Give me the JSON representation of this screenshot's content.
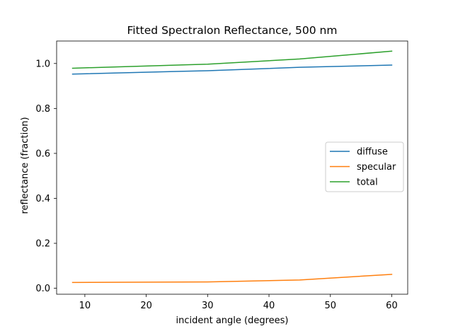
{
  "chart_data": {
    "type": "line",
    "title": "Fitted Spectralon Reflectance, 500 nm",
    "xlabel": "incident angle (degrees)",
    "ylabel": "reflectance (fraction)",
    "xlim": [
      5.4,
      62.6
    ],
    "ylim": [
      -0.0265,
      1.1
    ],
    "xticks": [
      10,
      20,
      30,
      40,
      50,
      60
    ],
    "yticks": [
      0.0,
      0.2,
      0.4,
      0.6,
      0.8,
      1.0
    ],
    "xtick_labels": [
      "10",
      "20",
      "30",
      "40",
      "50",
      "60"
    ],
    "ytick_labels": [
      "0.0",
      "0.2",
      "0.4",
      "0.6",
      "0.8",
      "1.0"
    ],
    "grid": false,
    "legend_position": "center-right",
    "series": [
      {
        "name": "diffuse",
        "color": "#1f77b4",
        "x": [
          8,
          30,
          45,
          60
        ],
        "y": [
          0.953,
          0.968,
          0.983,
          0.993
        ]
      },
      {
        "name": "specular",
        "color": "#ff7f0e",
        "x": [
          8,
          30,
          45,
          60
        ],
        "y": [
          0.026,
          0.028,
          0.037,
          0.062
        ]
      },
      {
        "name": "total",
        "color": "#2ca02c",
        "x": [
          8,
          30,
          45,
          60
        ],
        "y": [
          0.979,
          0.997,
          1.02,
          1.055
        ]
      }
    ]
  }
}
